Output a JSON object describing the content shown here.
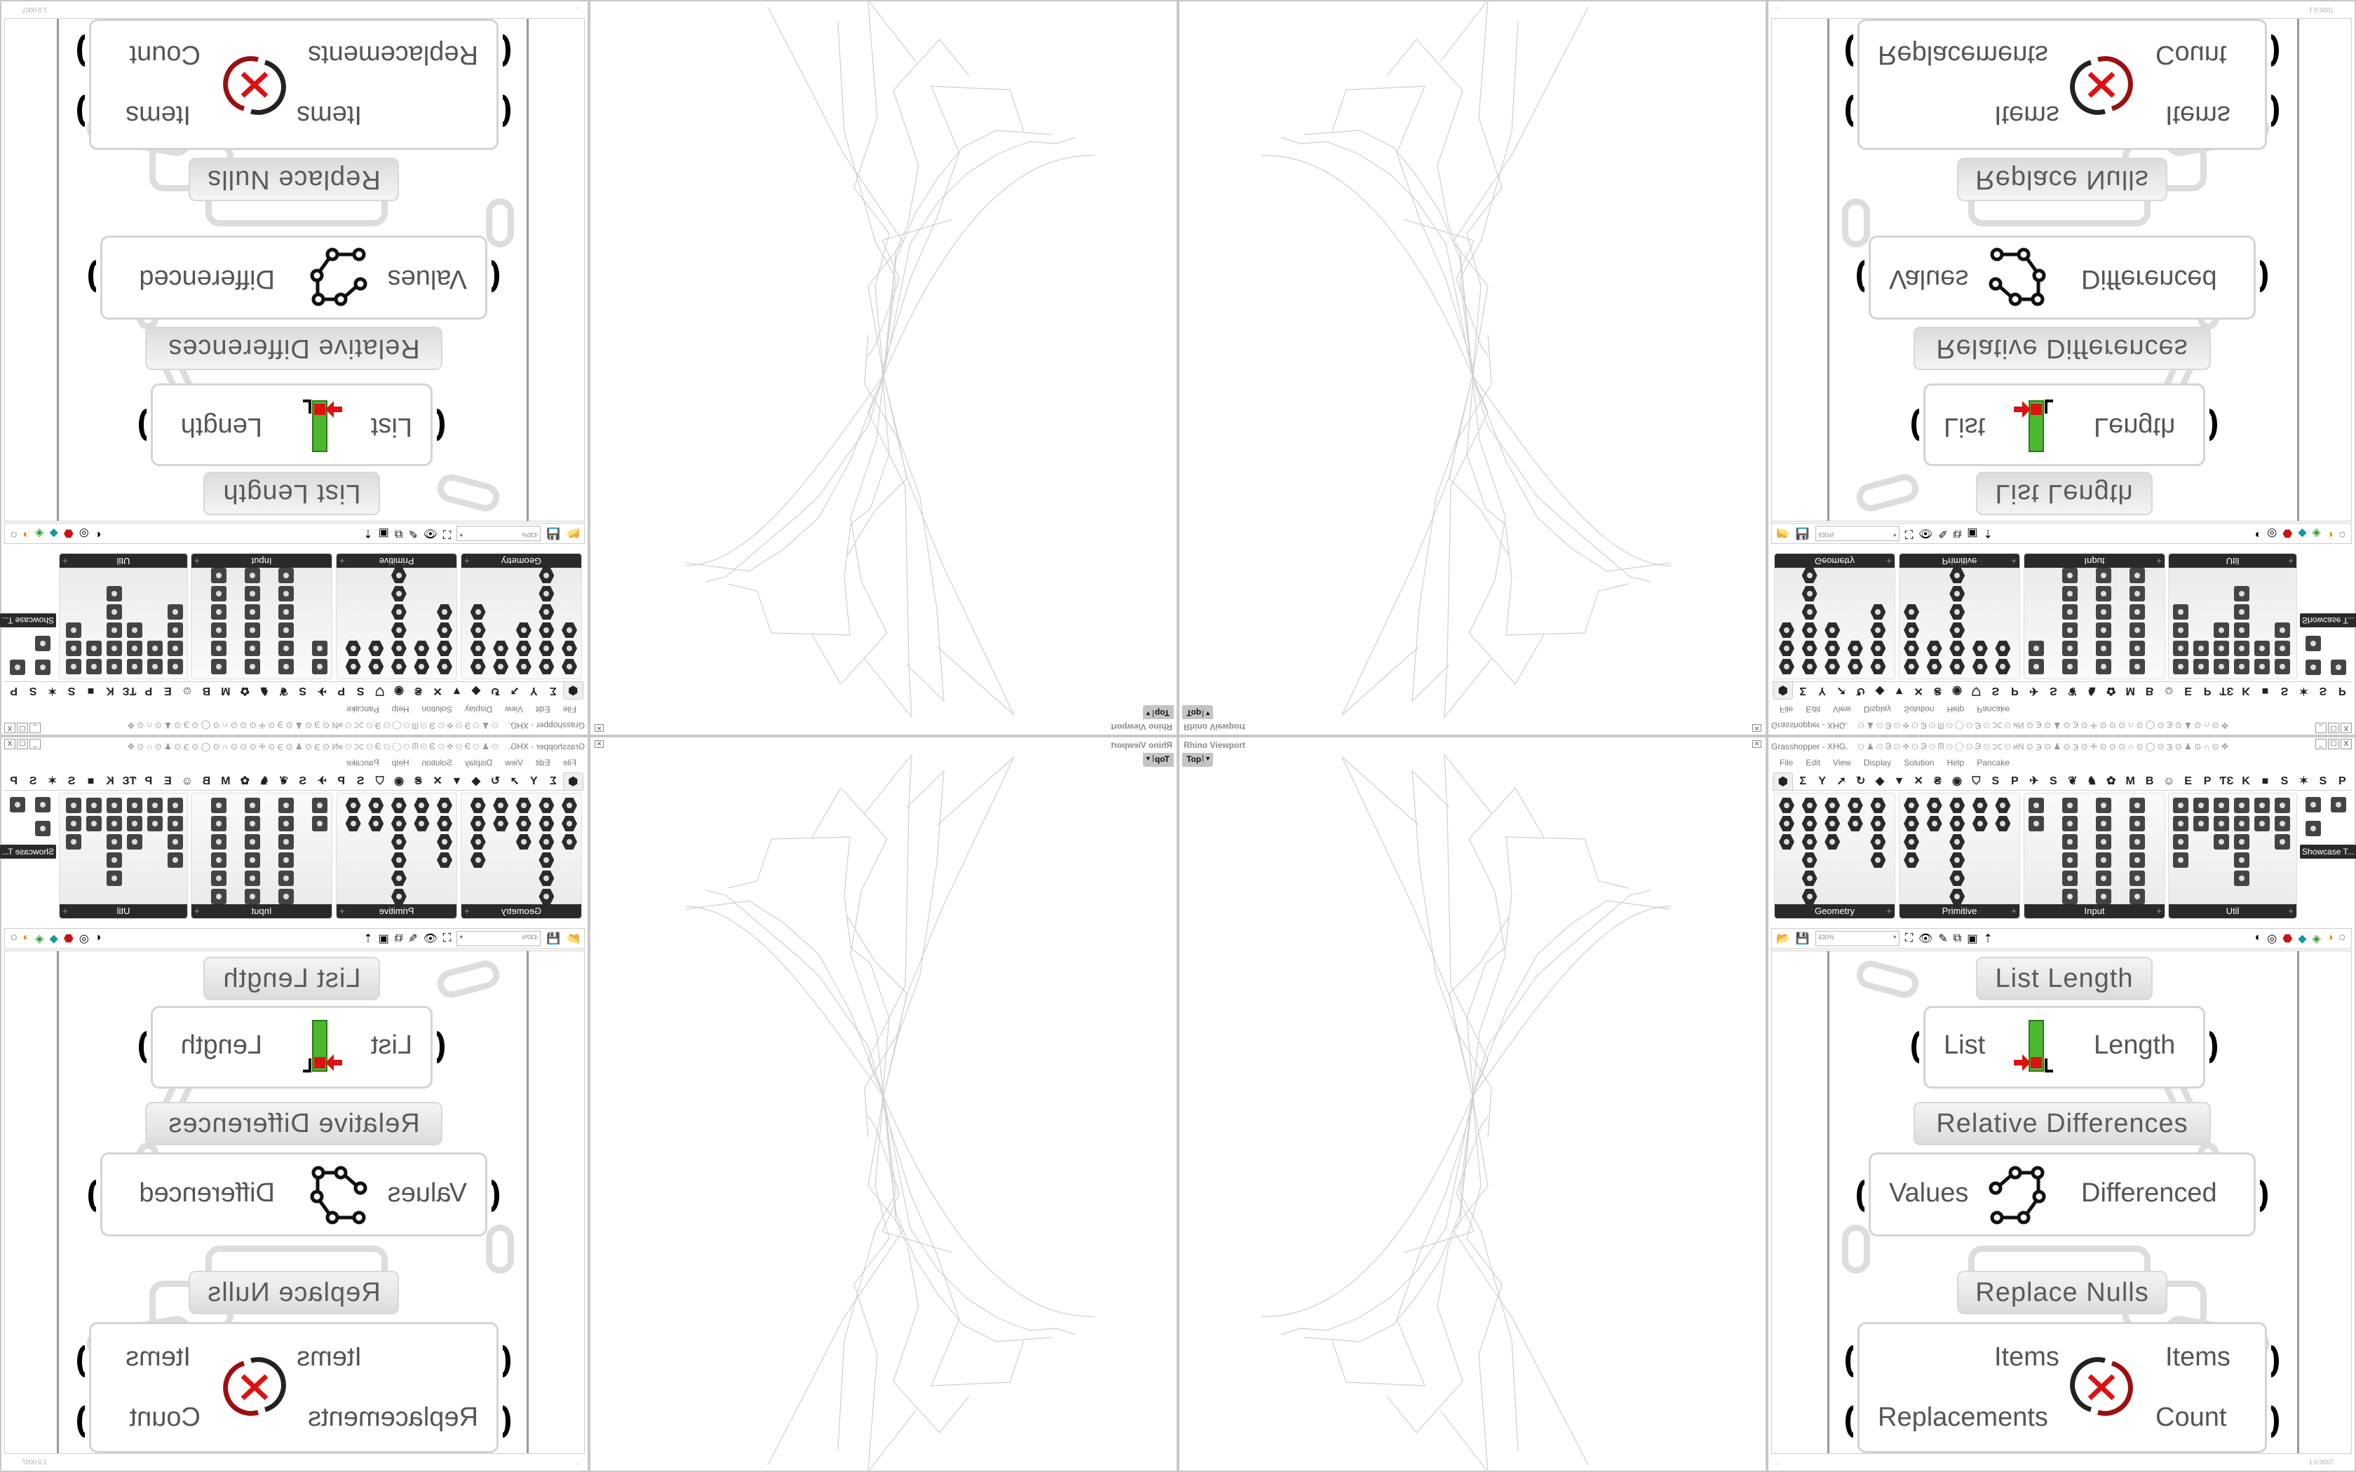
{
  "viewport": {
    "title": "Rhino Viewport",
    "view": "Top"
  },
  "grasshopper": {
    "title": "Grasshopper - XHG.",
    "title_icons": "⊙ ♟ ⊙ ℈ ⊙ ✥ ⊙ ℈ ⊙ ᗰ ⊙ ◯ ⊙ ℈ ⊙ ⊃⊂ ⊙ ᴎN ⊙ ℈ ⊙ ♟ ⊙ ℈ ⊙ ✛ ⊙ ⊙ ⊙ ∩ ⊙ ◯ ⊙ ℈ ⊙ ♟ ⊙ ∩ ⊙ ✥",
    "menu": [
      "File",
      "Edit",
      "View",
      "Display",
      "Solution",
      "Help",
      "Pancake"
    ],
    "tabs": [
      "⬢",
      "Σ",
      "Y",
      "➚",
      "↻",
      "◆",
      "▼",
      "✕",
      "₴",
      "◉",
      "⛉",
      "S",
      "P",
      "✈",
      "S",
      "❦",
      "♞",
      "✿",
      "M",
      "B",
      "☺",
      "E",
      "P",
      "ƬƐ",
      "K",
      "■",
      "S",
      "✶",
      "S",
      "P"
    ],
    "panels": [
      "Geometry",
      "Primitive",
      "Input",
      "Util"
    ],
    "showcase": "Showcase T...",
    "zoom": "430%",
    "toolbar_left_icons": [
      "📂",
      "💾"
    ],
    "toolbar_mid_icons": [
      "⛶",
      "👁",
      "✎",
      "⧉",
      "▣",
      "⇡"
    ],
    "toolbar_right_icons": [
      "◐",
      "◎",
      "⬣",
      "◆",
      "◈",
      "◑",
      "◌"
    ],
    "window_buttons": [
      "_",
      "☐",
      "X"
    ],
    "status_left": "...",
    "version": "1.0.0007"
  },
  "canvas": {
    "list_length": {
      "label": "List Length",
      "input": "List",
      "output": "Length"
    },
    "relative_differences": {
      "label": "Relative Differences",
      "input": "Values",
      "output": "Differenced"
    },
    "replace_nulls": {
      "label": "Replace Nulls",
      "inputs": [
        "Items",
        "Replacements"
      ],
      "outputs": [
        "Items",
        "Count"
      ]
    }
  },
  "colors": {
    "accent_red": "#cc1111",
    "list_green": "#3ca020",
    "panel_footer": "#2a2a2a",
    "wire_grey": "#c8c8c8"
  }
}
